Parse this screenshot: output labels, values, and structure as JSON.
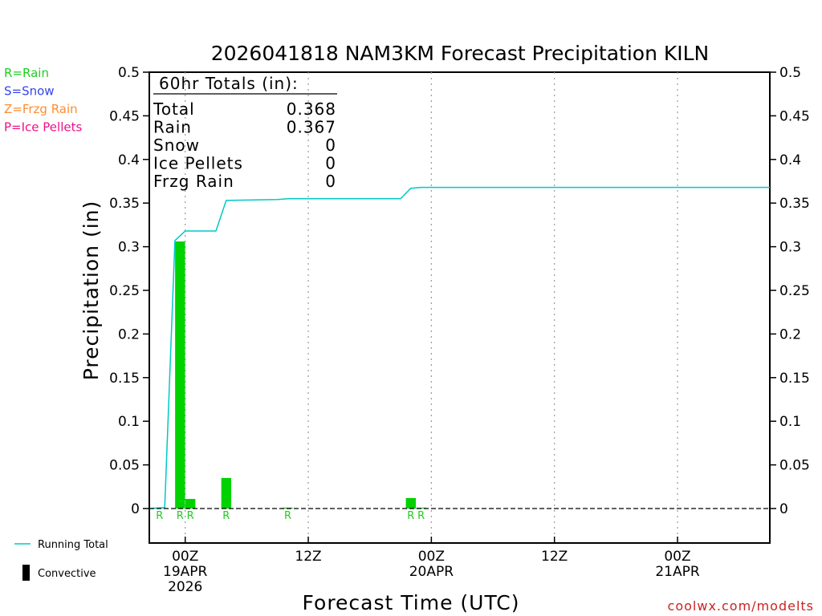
{
  "chart_data": {
    "type": "bar",
    "title": "2026041818 NAM3KM Forecast Precipitation KILN",
    "xlabel": "Forecast Time (UTC)",
    "ylabel": "Precipitation (in)",
    "ylim": [
      0,
      0.5
    ],
    "y_ticks": [
      0,
      0.05,
      0.1,
      0.15,
      0.2,
      0.25,
      0.3,
      0.35,
      0.4,
      0.45,
      0.5
    ],
    "y_tick_labels": [
      "0",
      "0.05",
      "0.1",
      "0.15",
      "0.2",
      "0.25",
      "0.3",
      "0.35",
      "0.4",
      "0.45",
      "0.5"
    ],
    "x_range_hours": [
      -3.5,
      57
    ],
    "x_ticks": [
      {
        "hour": 0,
        "label": "00Z",
        "label2": "19APR",
        "label3": "2026"
      },
      {
        "hour": 12,
        "label": "12Z",
        "label2": "",
        "label3": ""
      },
      {
        "hour": 24,
        "label": "00Z",
        "label2": "20APR",
        "label3": ""
      },
      {
        "hour": 36,
        "label": "12Z",
        "label2": "",
        "label3": ""
      },
      {
        "hour": 48,
        "label": "00Z",
        "label2": "21APR",
        "label3": ""
      }
    ],
    "series": [
      {
        "name": "Precipitation",
        "kind": "bar",
        "color": "#00d200",
        "bars": [
          {
            "hour": -2.5,
            "value": 0.001,
            "ptype": "R"
          },
          {
            "hour": -0.5,
            "value": 0.306,
            "ptype": "R"
          },
          {
            "hour": 0.5,
            "value": 0.011,
            "ptype": "R"
          },
          {
            "hour": 4.0,
            "value": 0.035,
            "ptype": "R"
          },
          {
            "hour": 10.0,
            "value": 0.001,
            "ptype": "R"
          },
          {
            "hour": 22.0,
            "value": 0.012,
            "ptype": "R"
          },
          {
            "hour": 23.0,
            "value": 0.001,
            "ptype": "R"
          }
        ]
      },
      {
        "name": "Running Total",
        "kind": "line",
        "color": "#00c8c8",
        "points": [
          [
            -3.5,
            0.0
          ],
          [
            -2.0,
            0.001
          ],
          [
            -1.0,
            0.307
          ],
          [
            0.0,
            0.318
          ],
          [
            3.0,
            0.318
          ],
          [
            4.0,
            0.353
          ],
          [
            9.0,
            0.354
          ],
          [
            10.0,
            0.355
          ],
          [
            21.0,
            0.355
          ],
          [
            22.0,
            0.367
          ],
          [
            23.0,
            0.368
          ],
          [
            57.0,
            0.368
          ]
        ]
      }
    ],
    "totals_box": {
      "header": "60hr Totals (in):",
      "rows": [
        {
          "label": "Total",
          "value": "0.368"
        },
        {
          "label": "Rain",
          "value": "0.367"
        },
        {
          "label": "Snow",
          "value": "0"
        },
        {
          "label": "Ice Pellets",
          "value": "0"
        },
        {
          "label": "Frzg Rain",
          "value": "0"
        }
      ]
    },
    "ptype_legend": [
      {
        "text": "R=Rain",
        "color": "#22cc22"
      },
      {
        "text": "S=Snow",
        "color": "#3344ee"
      },
      {
        "text": "Z=Frzg Rain",
        "color": "#ff8c30"
      },
      {
        "text": "P=Ice Pellets",
        "color": "#ee1188"
      }
    ],
    "bottom_legend": [
      {
        "text": "Running Total",
        "color": "#00c8c8",
        "symbol": "line"
      },
      {
        "text": "Convective",
        "color": "#000000",
        "symbol": "bar"
      }
    ],
    "credit": "coolwx.com/modelts"
  }
}
